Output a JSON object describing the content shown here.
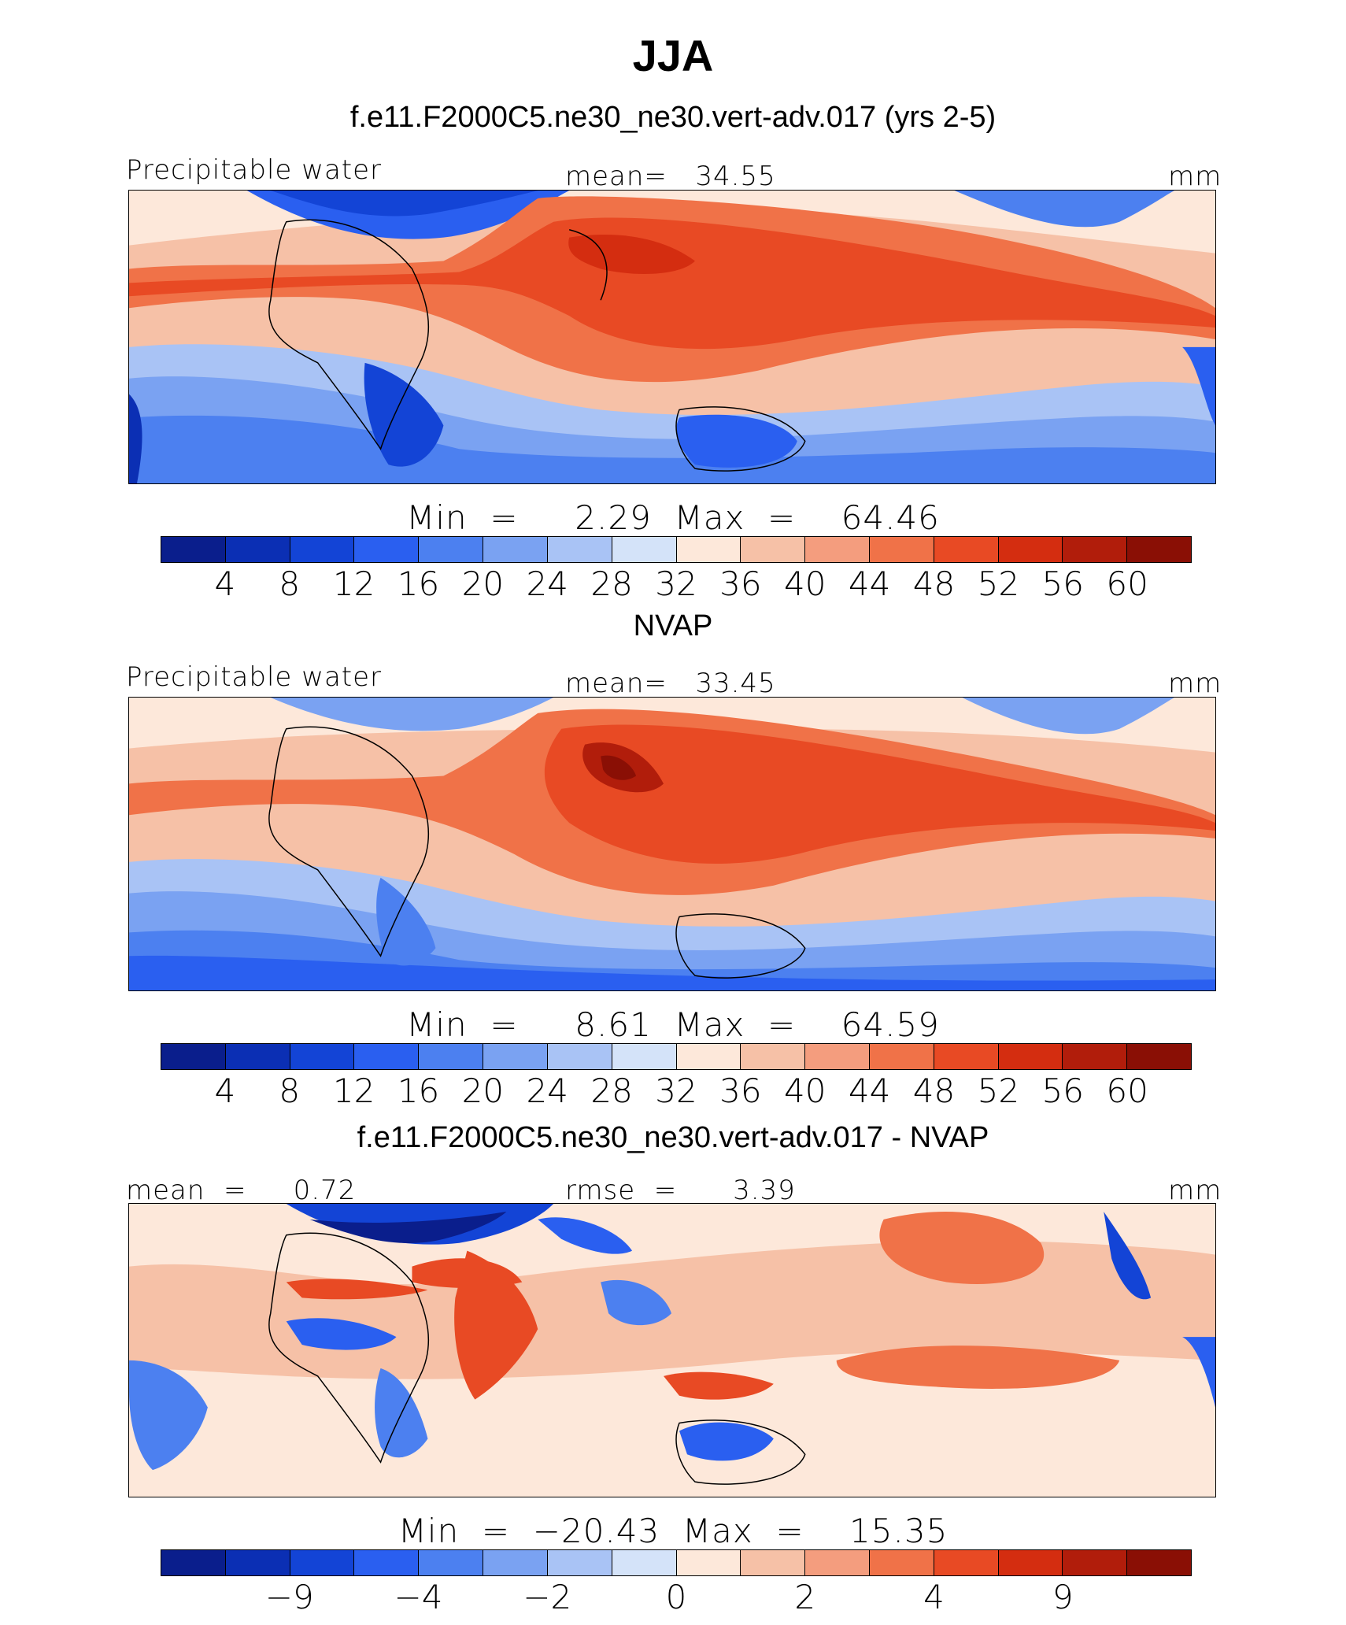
{
  "title": "JJA",
  "colors": [
    "#0a1e8c",
    "#0b2fb4",
    "#1344d6",
    "#2a5ff0",
    "#4c80f0",
    "#7aa2f2",
    "#a9c3f5",
    "#d4e3f9",
    "#fde8da",
    "#f6c1a7",
    "#f49d7e",
    "#f07248",
    "#e84a24",
    "#d42d10",
    "#b11d0b",
    "#8a0f05"
  ],
  "panels": [
    {
      "header": "f.e11.F2000C5.ne30_ne30.vert-adv.017 (yrs 2-5)",
      "left_label": "Precipitable water",
      "center_label": "mean=   34.55",
      "right_label": "mm",
      "minmax": "Min  =     2.29  Max  =    64.46",
      "ticks": [
        "4",
        "8",
        "12",
        "16",
        "20",
        "24",
        "28",
        "32",
        "36",
        "40",
        "44",
        "48",
        "52",
        "56",
        "60"
      ]
    },
    {
      "header": "NVAP",
      "left_label": "Precipitable water",
      "center_label": "mean=   33.45",
      "right_label": "mm",
      "minmax": "Min  =     8.61  Max  =    64.59",
      "ticks": [
        "4",
        "8",
        "12",
        "16",
        "20",
        "24",
        "28",
        "32",
        "36",
        "40",
        "44",
        "48",
        "52",
        "56",
        "60"
      ]
    },
    {
      "header": "f.e11.F2000C5.ne30_ne30.vert-adv.017 - NVAP",
      "left_label": "mean  =     0.72",
      "center_label": "rmse  =      3.39",
      "right_label": "mm",
      "minmax": "Min  =  −20.43  Max  =    15.35",
      "ticks": [
        "−9",
        "−4",
        "−2",
        "0",
        "2",
        "4",
        "9"
      ]
    }
  ]
}
